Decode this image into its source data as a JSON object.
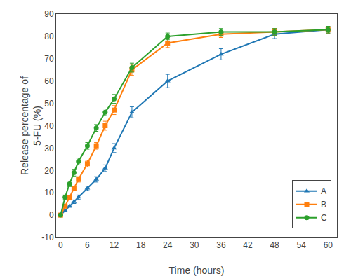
{
  "chart_data": {
    "type": "line",
    "xlabel": "Time (hours)",
    "ylabel": "Release percentage of\n5-FU (%)",
    "x": [
      0,
      1,
      2,
      3,
      4,
      6,
      8,
      10,
      12,
      16,
      24,
      36,
      48,
      60
    ],
    "xlim": [
      -1,
      62
    ],
    "xticks": [
      0,
      6,
      12,
      18,
      24,
      30,
      36,
      42,
      48,
      54,
      60
    ],
    "ylim": [
      -10,
      90
    ],
    "yticks": [
      -10,
      0,
      10,
      20,
      30,
      40,
      50,
      60,
      70,
      80,
      90
    ],
    "grid": false,
    "legend": "lower right",
    "series": [
      {
        "name": "A",
        "marker": "triangle",
        "values": [
          0,
          2,
          4,
          6,
          8,
          12,
          16,
          21,
          30,
          46,
          60,
          72,
          81,
          83
        ],
        "yerr": [
          0.3,
          0.5,
          0.5,
          0.8,
          1.0,
          1.0,
          1.2,
          1.5,
          2.0,
          2.5,
          3.0,
          2.5,
          2.0,
          1.5
        ]
      },
      {
        "name": "B",
        "marker": "square",
        "values": [
          0,
          4,
          8,
          12,
          16,
          23,
          31,
          40,
          47,
          65,
          77,
          81,
          82,
          83
        ],
        "yerr": [
          0.3,
          0.5,
          0.8,
          1.0,
          1.2,
          1.5,
          1.5,
          2.0,
          2.0,
          2.5,
          2.0,
          1.5,
          1.5,
          1.5
        ]
      },
      {
        "name": "C",
        "marker": "circle",
        "values": [
          0,
          8,
          14,
          19,
          24,
          31,
          39,
          46,
          52,
          66,
          80,
          82,
          82,
          83
        ],
        "yerr": [
          0.3,
          1.0,
          1.2,
          1.5,
          1.5,
          1.5,
          1.5,
          1.5,
          2.0,
          2.0,
          1.5,
          1.5,
          1.5,
          1.5
        ]
      }
    ]
  }
}
